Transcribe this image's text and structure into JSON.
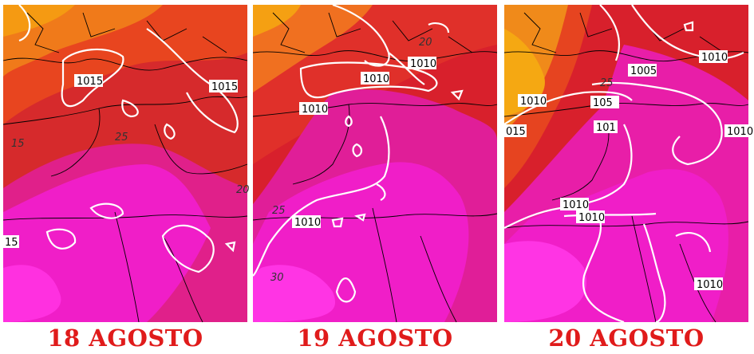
{
  "panels": [
    {
      "caption": "18 AGOSTO",
      "isobar_labels": [
        "1015",
        "1015",
        "15"
      ],
      "temp_labels": [
        "25",
        "15",
        "20"
      ]
    },
    {
      "caption": "19 AGOSTO",
      "isobar_labels": [
        "1010",
        "1010",
        "1010",
        "1010"
      ],
      "temp_labels": [
        "25",
        "30",
        "20"
      ]
    },
    {
      "caption": "20 AGOSTO",
      "isobar_labels": [
        "1005",
        "1010",
        "1010",
        "105",
        "015",
        "101",
        "1010",
        "1010",
        "1010",
        "1010"
      ],
      "temp_labels": [
        "25"
      ]
    }
  ],
  "colors": {
    "caption": "#e01b1b",
    "magenta": "#f01ec8",
    "red": "#d8202c",
    "orange": "#f06a1e",
    "yellow_orange": "#f5a012",
    "isobar": "#ffffff",
    "coast": "#000000"
  }
}
